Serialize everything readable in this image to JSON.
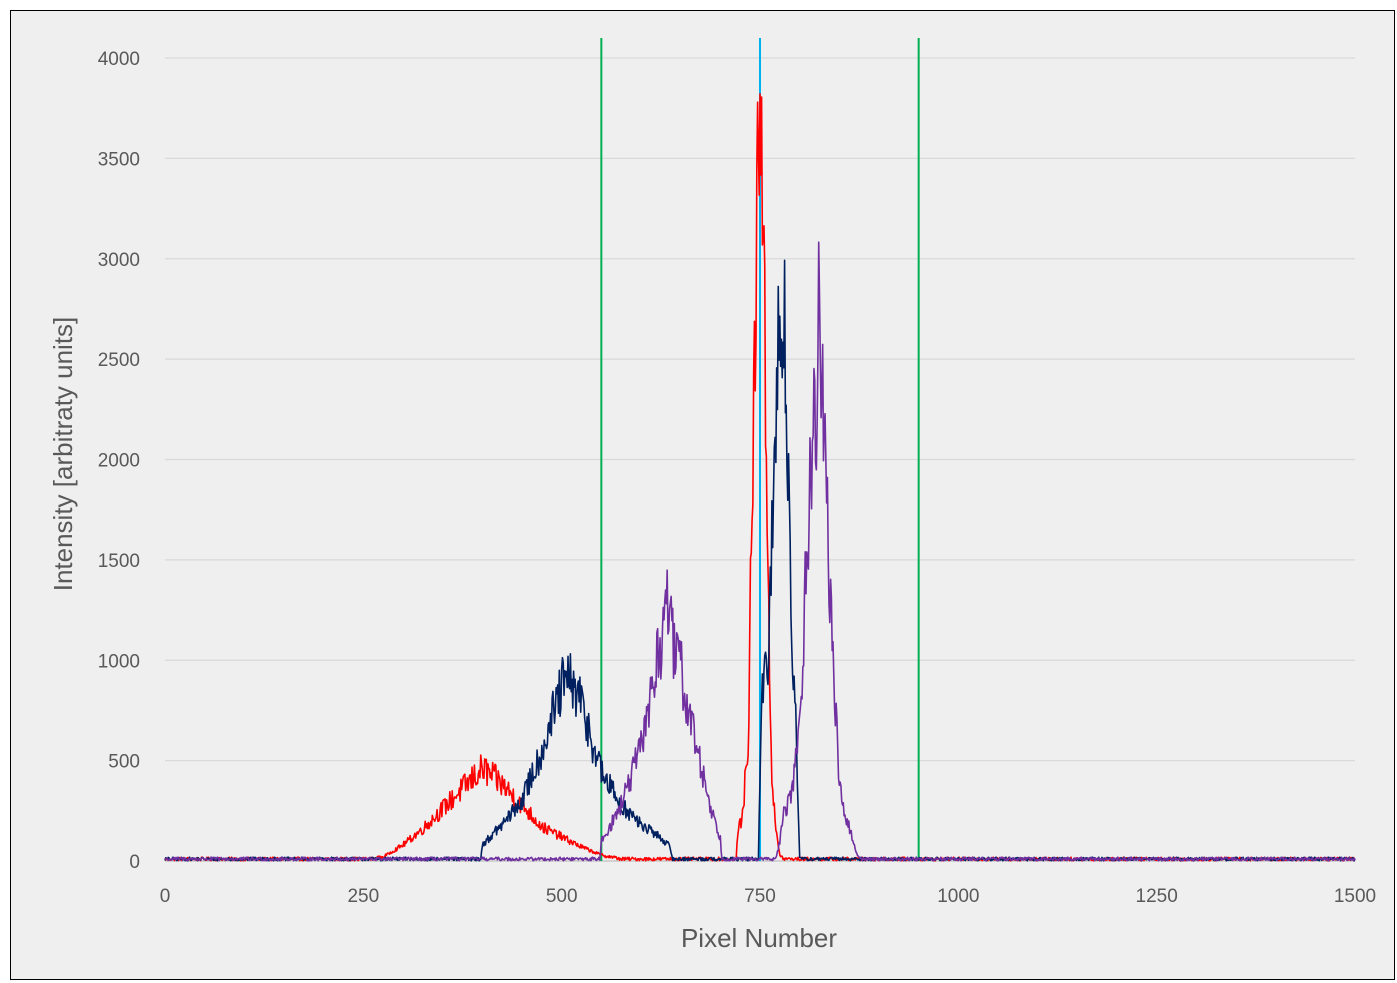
{
  "chart_data": {
    "type": "line",
    "title": "",
    "xlabel": "Pixel Number",
    "ylabel": "Intensity [arbitraty units]",
    "xlim": [
      0,
      1500
    ],
    "ylim": [
      0,
      4000
    ],
    "x_ticks": [
      "0",
      "250",
      "500",
      "750",
      "1000",
      "1250",
      "1500"
    ],
    "y_ticks": [
      "0",
      "500",
      "1000",
      "1500",
      "2000",
      "2500",
      "3000",
      "3500",
      "4000"
    ],
    "grid": "horizontal",
    "legend": "none",
    "vertical_lines": [
      {
        "x": 550,
        "color": "#00b050"
      },
      {
        "x": 950,
        "color": "#00b050"
      },
      {
        "x": 750,
        "color": "#00b0f0"
      }
    ],
    "series": [
      {
        "color": "#ff0000",
        "points": [
          [
            0,
            10
          ],
          [
            260,
            10
          ],
          [
            275,
            20
          ],
          [
            300,
            80
          ],
          [
            325,
            160
          ],
          [
            350,
            260
          ],
          [
            375,
            360
          ],
          [
            400,
            460
          ],
          [
            410,
            430
          ],
          [
            425,
            380
          ],
          [
            450,
            280
          ],
          [
            475,
            170
          ],
          [
            500,
            120
          ],
          [
            525,
            70
          ],
          [
            550,
            30
          ],
          [
            575,
            10
          ],
          [
            720,
            10
          ],
          [
            722,
            150
          ],
          [
            728,
            220
          ],
          [
            735,
            600
          ],
          [
            742,
            2200
          ],
          [
            748,
            3600
          ],
          [
            750,
            3980
          ],
          [
            752,
            3800
          ],
          [
            755,
            2800
          ],
          [
            760,
            1500
          ],
          [
            765,
            400
          ],
          [
            770,
            150
          ],
          [
            775,
            30
          ],
          [
            780,
            10
          ],
          [
            1500,
            10
          ]
        ]
      },
      {
        "color": "#002060",
        "points": [
          [
            0,
            10
          ],
          [
            398,
            10
          ],
          [
            400,
            80
          ],
          [
            410,
            120
          ],
          [
            425,
            180
          ],
          [
            450,
            300
          ],
          [
            475,
            550
          ],
          [
            500,
            860
          ],
          [
            510,
            900
          ],
          [
            525,
            780
          ],
          [
            550,
            440
          ],
          [
            575,
            280
          ],
          [
            600,
            180
          ],
          [
            620,
            130
          ],
          [
            635,
            80
          ],
          [
            640,
            10
          ],
          [
            748,
            10
          ],
          [
            750,
            400
          ],
          [
            752,
            780
          ],
          [
            760,
            1000
          ],
          [
            768,
            1900
          ],
          [
            775,
            2950
          ],
          [
            782,
            2500
          ],
          [
            790,
            1200
          ],
          [
            795,
            700
          ],
          [
            800,
            10
          ],
          [
            1500,
            10
          ]
        ]
      },
      {
        "color": "#7030a0",
        "points": [
          [
            0,
            10
          ],
          [
            548,
            10
          ],
          [
            550,
            100
          ],
          [
            562,
            180
          ],
          [
            575,
            280
          ],
          [
            600,
            560
          ],
          [
            615,
            900
          ],
          [
            625,
            1050
          ],
          [
            630,
            1370
          ],
          [
            640,
            1080
          ],
          [
            650,
            950
          ],
          [
            660,
            750
          ],
          [
            675,
            480
          ],
          [
            690,
            240
          ],
          [
            700,
            110
          ],
          [
            702,
            10
          ],
          [
            770,
            10
          ],
          [
            775,
            100
          ],
          [
            780,
            230
          ],
          [
            790,
            350
          ],
          [
            800,
            650
          ],
          [
            810,
            1700
          ],
          [
            820,
            2200
          ],
          [
            825,
            2800
          ],
          [
            830,
            2200
          ],
          [
            840,
            1200
          ],
          [
            850,
            350
          ],
          [
            860,
            200
          ],
          [
            870,
            60
          ],
          [
            875,
            10
          ],
          [
            1500,
            10
          ]
        ]
      }
    ]
  }
}
